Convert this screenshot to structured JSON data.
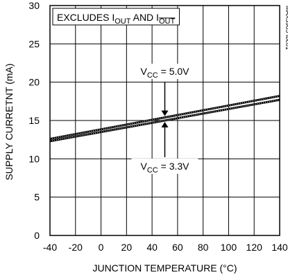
{
  "chart_data": {
    "type": "line",
    "xlabel": "JUNCTION TEMPERATURE (°C)",
    "ylabel": "SUPPLY CURRETNT (mA)",
    "xlim": [
      -40,
      140
    ],
    "ylim": [
      0,
      30
    ],
    "x_ticks": [
      -40,
      -20,
      0,
      20,
      40,
      60,
      80,
      100,
      120,
      140
    ],
    "y_ticks": [
      0,
      5,
      10,
      15,
      20,
      25,
      30
    ],
    "x_tick_labels": [
      "-40",
      "-20",
      "0",
      "20",
      "40",
      "60",
      "80",
      "100",
      "120",
      "140"
    ],
    "y_tick_labels": [
      "0",
      "5",
      "10",
      "15",
      "20",
      "25",
      "30"
    ],
    "grid": true,
    "series": [
      {
        "name": "VCC = 5.0V",
        "x": [
          -40,
          140
        ],
        "y": [
          12.6,
          18.2
        ]
      },
      {
        "name": "VCC = 3.3V",
        "x": [
          -40,
          140
        ],
        "y": [
          12.3,
          17.7
        ]
      }
    ],
    "annotations": {
      "excludes": {
        "prefix": "EXCLUDES I",
        "sub1": "OUT",
        "mid": " AND I",
        "sub2": "OUT",
        "sub2_overline": true
      },
      "vcc_top": {
        "prefix": "V",
        "sub": "CC",
        "value": " = 5.0V",
        "arrow_x": 50
      },
      "vcc_bottom": {
        "prefix": "V",
        "sub": "CC",
        "value": " = 3.3V",
        "arrow_x": 50
      }
    },
    "side_id": "MAX3905 toc01"
  },
  "colors": {
    "line": "#000000",
    "grid": "#000000",
    "background": "#ffffff"
  }
}
